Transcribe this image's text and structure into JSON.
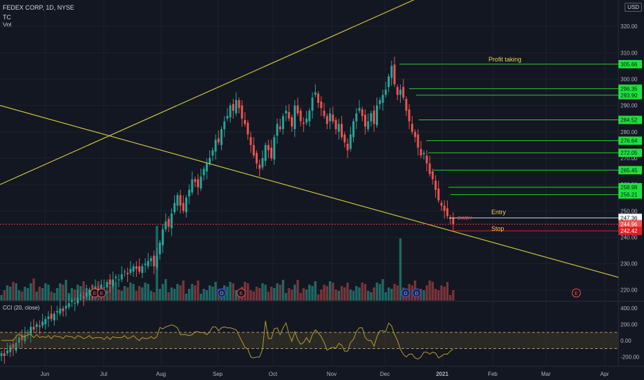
{
  "header": {
    "symbol": "FEDEX CORP, 1D, NYSE",
    "tc": "TC",
    "vol": "Vol",
    "currency": "USD",
    "cci": "CCI (20, close)"
  },
  "annotations": {
    "profit": "Profit taking",
    "entry": "Entry",
    "stop": "Stop",
    "dwdy": "DWDY"
  },
  "chart_data": {
    "type": "candlestick",
    "xlabels": [
      "Jun",
      "Jul",
      "Aug",
      "Sep",
      "Oct",
      "Nov",
      "Dec",
      "2021",
      "Feb",
      "Mar",
      "Apr"
    ],
    "yticks": [
      220,
      230,
      240,
      250,
      260,
      270,
      280,
      290,
      300,
      310,
      320
    ],
    "ylim": [
      216,
      330
    ],
    "price_levels": [
      {
        "label": "305.66",
        "value": 305.66,
        "type": "target"
      },
      {
        "label": "296.35",
        "value": 296.35,
        "type": "target"
      },
      {
        "label": "293.90",
        "value": 293.9,
        "type": "target"
      },
      {
        "label": "284.52",
        "value": 284.52,
        "type": "target"
      },
      {
        "label": "276.64",
        "value": 276.64,
        "type": "target"
      },
      {
        "label": "272.05",
        "value": 272.05,
        "type": "target"
      },
      {
        "label": "265.45",
        "value": 265.45,
        "type": "target"
      },
      {
        "label": "258.98",
        "value": 258.98,
        "type": "target"
      },
      {
        "label": "256.21",
        "value": 256.21,
        "type": "target"
      },
      {
        "label": "247.36",
        "value": 247.36,
        "type": "entry"
      },
      {
        "label": "244.96",
        "value": 244.96,
        "type": "current"
      },
      {
        "label": "242.42",
        "value": 242.42,
        "type": "stop"
      }
    ],
    "close_series": [
      196,
      195,
      197,
      199,
      198,
      200,
      202,
      201,
      203,
      204,
      206,
      205,
      207,
      206,
      208,
      209,
      210,
      209,
      211,
      212,
      213,
      212,
      214,
      215,
      216,
      215,
      217,
      218,
      217,
      219,
      220,
      219,
      221,
      220,
      222,
      221,
      223,
      222,
      224,
      225,
      224,
      226,
      227,
      226,
      228,
      229,
      228,
      227,
      229,
      230,
      231,
      232,
      229,
      233,
      238,
      243,
      246,
      244,
      249,
      253,
      256,
      252,
      250,
      255,
      258,
      262,
      261,
      259,
      263,
      266,
      268,
      270,
      273,
      277,
      276,
      281,
      284,
      286,
      290,
      288,
      292,
      289,
      285,
      283,
      279,
      275,
      271,
      268,
      266,
      270,
      275,
      273,
      270,
      278,
      283,
      281,
      286,
      288,
      285,
      282,
      290,
      287,
      284,
      283,
      285,
      288,
      293,
      295,
      291,
      289,
      286,
      283,
      287,
      284,
      281,
      283,
      278,
      276,
      273,
      279,
      284,
      287,
      289,
      286,
      282,
      284,
      287,
      283,
      290,
      292,
      294,
      296,
      301,
      305,
      298,
      294,
      296,
      293,
      288,
      284,
      280,
      278,
      274,
      271,
      272,
      268,
      264,
      262,
      258,
      254,
      252,
      250,
      248,
      247,
      245
    ],
    "cci_ticks": [
      400,
      200,
      0,
      -200
    ],
    "cci_band": [
      100,
      -100
    ],
    "volume_events": [
      "E",
      "E",
      "D",
      "E",
      "D",
      "D",
      "E"
    ]
  }
}
